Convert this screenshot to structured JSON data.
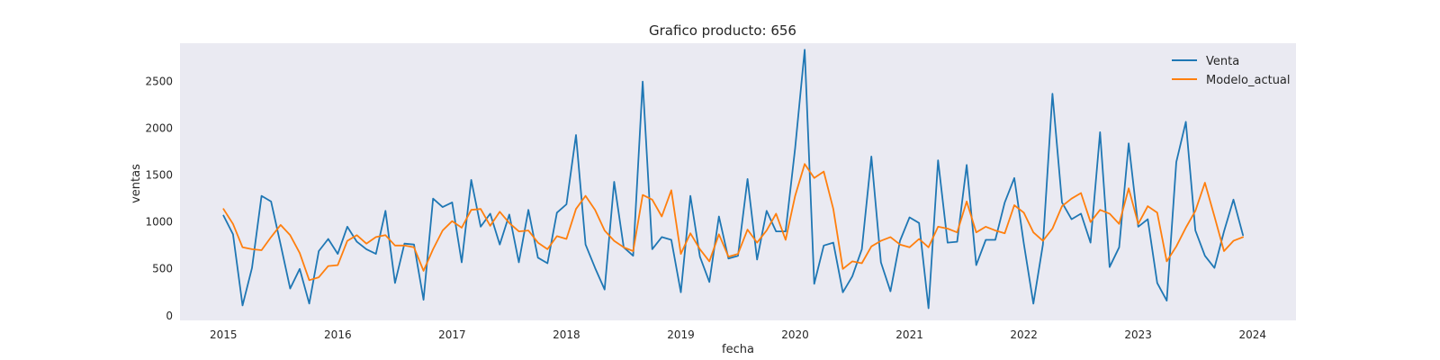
{
  "chart_data": {
    "type": "line",
    "title": "Grafico producto: 656",
    "xlabel": "fecha",
    "ylabel": "ventas",
    "x_start": "2015-01",
    "x_step": "monthly",
    "xlim": [
      2014.62,
      2024.38
    ],
    "ylim": [
      -60,
      2900
    ],
    "x_ticks": [
      2015,
      2016,
      2017,
      2018,
      2019,
      2020,
      2021,
      2022,
      2023,
      2024
    ],
    "x_tick_labels": [
      "2015",
      "2016",
      "2017",
      "2018",
      "2019",
      "2020",
      "2021",
      "2022",
      "2023",
      "2024"
    ],
    "y_ticks": [
      0,
      500,
      1000,
      1500,
      2000,
      2500
    ],
    "y_tick_labels": [
      "0",
      "500",
      "1000",
      "1500",
      "2000",
      "2500"
    ],
    "grid": false,
    "legend_position": "top-right",
    "background": "#eaeaf2",
    "series": [
      {
        "name": "Venta",
        "color": "#1f77b4",
        "values": [
          1060,
          860,
          100,
          500,
          1270,
          1210,
          750,
          280,
          490,
          120,
          680,
          810,
          650,
          940,
          780,
          700,
          650,
          1110,
          340,
          760,
          750,
          160,
          1240,
          1150,
          1200,
          560,
          1440,
          940,
          1080,
          750,
          1070,
          560,
          1120,
          610,
          550,
          1090,
          1180,
          1920,
          750,
          500,
          270,
          1420,
          720,
          630,
          2490,
          700,
          830,
          800,
          240,
          1270,
          620,
          350,
          1050,
          600,
          630,
          1450,
          590,
          1110,
          890,
          890,
          1780,
          2830,
          330,
          740,
          770,
          240,
          410,
          700,
          1690,
          560,
          250,
          790,
          1040,
          980,
          70,
          1650,
          770,
          780,
          1600,
          530,
          800,
          800,
          1200,
          1460,
          760,
          120,
          750,
          2360,
          1200,
          1020,
          1080,
          770,
          1950,
          510,
          720,
          1830,
          940,
          1020,
          340,
          150,
          1630,
          2060,
          900,
          630,
          500,
          890,
          1230,
          850
        ]
      },
      {
        "name": "Modelo_actual",
        "color": "#ff7f0e",
        "values": [
          1130,
          970,
          720,
          700,
          690,
          830,
          960,
          850,
          660,
          370,
          400,
          520,
          530,
          790,
          850,
          760,
          830,
          850,
          740,
          740,
          720,
          470,
          700,
          900,
          1000,
          930,
          1120,
          1130,
          950,
          1100,
          980,
          890,
          900,
          770,
          700,
          840,
          810,
          1130,
          1270,
          1120,
          900,
          790,
          720,
          680,
          1280,
          1230,
          1050,
          1330,
          650,
          870,
          700,
          570,
          860,
          620,
          650,
          910,
          770,
          900,
          1080,
          800,
          1270,
          1610,
          1460,
          1530,
          1130,
          490,
          570,
          550,
          730,
          790,
          830,
          750,
          720,
          810,
          720,
          940,
          920,
          880,
          1210,
          880,
          940,
          900,
          870,
          1170,
          1090,
          880,
          790,
          920,
          1160,
          1240,
          1300,
          990,
          1120,
          1080,
          970,
          1350,
          970,
          1160,
          1090,
          570,
          730,
          930,
          1110,
          1410,
          1050,
          680,
          790,
          830
        ]
      }
    ]
  }
}
